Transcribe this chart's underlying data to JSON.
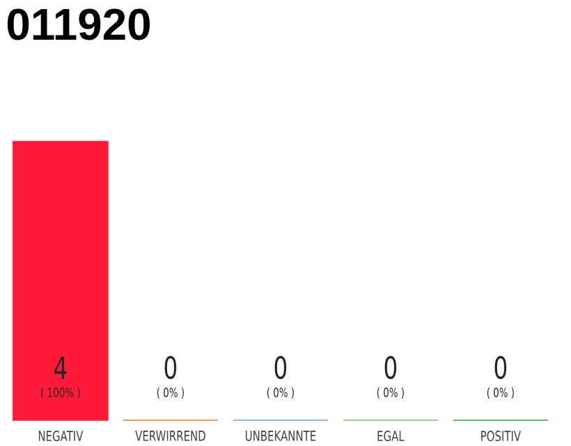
{
  "chart_data": {
    "type": "bar",
    "title": "011920",
    "categories": [
      "NEGATIV",
      "VERWIRREND",
      "UNBEKANNTE",
      "EGAL",
      "POSITIV"
    ],
    "values": [
      4,
      0,
      0,
      0,
      0
    ],
    "colors": [
      "#ff1a3a",
      "#e67e22",
      "#6f9be0",
      "#7dc462",
      "#2aa84a"
    ],
    "ylim": [
      0,
      4
    ],
    "data_labels": true,
    "annotations": [
      "( 100% )",
      "( 0% )",
      "( 0% )",
      "( 0% )",
      "( 0% )"
    ],
    "tick_labels": "x"
  }
}
